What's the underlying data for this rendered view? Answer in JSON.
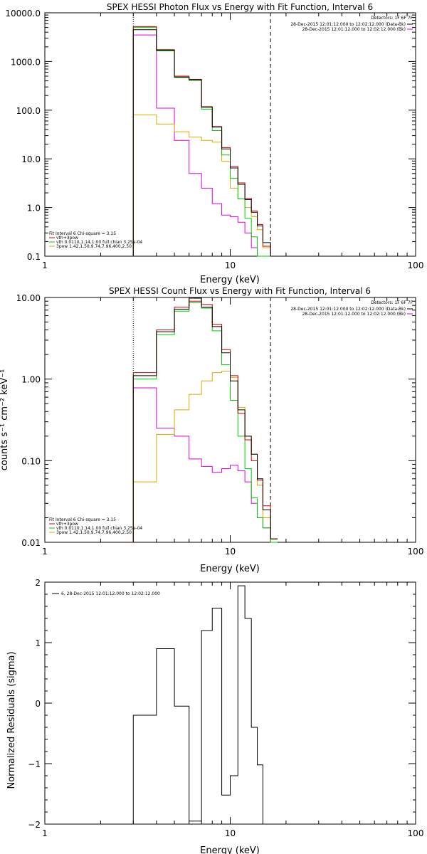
{
  "chart_data": [
    {
      "type": "line",
      "title": "SPEX HESSI Photon Flux vs Energy with Fit Function, Interval 6",
      "xlabel": "Energy (keV)",
      "ylabel": "",
      "xscale": "log",
      "yscale": "log",
      "xlim": [
        1,
        100
      ],
      "ylim": [
        0.1,
        10000
      ],
      "xticks": [
        {
          "v": 1,
          "label": "1"
        },
        {
          "v": 10,
          "label": "10"
        },
        {
          "v": 100,
          "label": "100"
        }
      ],
      "yticks": [
        {
          "v": 0.1,
          "label": "0.1"
        },
        {
          "v": 1,
          "label": "1.0"
        },
        {
          "v": 10,
          "label": "10.0"
        },
        {
          "v": 100,
          "label": "100.0"
        },
        {
          "v": 1000,
          "label": "1000.0"
        },
        {
          "v": 10000,
          "label": "10000.0"
        }
      ],
      "vlines": [
        {
          "x": 3,
          "style": "dotted"
        },
        {
          "x": 16.5,
          "style": "dashed"
        }
      ],
      "legend_top_right": {
        "header": "Detectors: 1F 6F 7F",
        "entries": [
          {
            "label": "28-Dec-2015 12:01:12.000 to 12:02:12.000 (Data-Bk)",
            "color": "#000000"
          },
          {
            "label": "28-Dec-2015 12:01:12.000 to 12:02:12.000 (Bk)",
            "color": "#dd00dd"
          }
        ]
      },
      "legend_bottom_left": {
        "header": "Fit Interval 6   Chi-square = 3.15",
        "entries": [
          {
            "label": "vth+3pow",
            "color": "#cc0000"
          },
          {
            "label": "vth 0.0110,1.14,1.00  full chian 3.25e-04",
            "color": "#00cc00"
          },
          {
            "label": "3pow 1.42,1.50,9.74,7.96,400,2.50",
            "color": "#ddaa00"
          }
        ]
      },
      "edges": [
        3,
        4,
        5,
        6,
        7,
        8,
        9,
        10,
        11,
        12,
        13,
        14,
        15,
        16.5,
        18
      ],
      "series": [
        {
          "name": "Data-Bk",
          "color": "#000000",
          "values": [
            4500,
            1700,
            480,
            420,
            115,
            45,
            16,
            6.5,
            3,
            1.45,
            0.8,
            0.42,
            0.19,
            0.1
          ]
        },
        {
          "name": "vth+3pow",
          "color": "#cc0000",
          "values": [
            5200,
            1750,
            500,
            430,
            118,
            46,
            17,
            7,
            3.2,
            1.55,
            0.85,
            0.45,
            0.16,
            0.1
          ]
        },
        {
          "name": "vth",
          "color": "#00cc00",
          "values": [
            5000,
            1650,
            470,
            410,
            105,
            38,
            12,
            4,
            1.5,
            0.6,
            0.25,
            0.1,
            0.1,
            0.1
          ]
        },
        {
          "name": "3pow",
          "color": "#ddaa00",
          "values": [
            80,
            52,
            36,
            28,
            24,
            22,
            9,
            2.5,
            1.5,
            1.0,
            0.65,
            0.35,
            0.15,
            0.1
          ]
        },
        {
          "name": "Bk",
          "color": "#dd00dd",
          "values": [
            3500,
            110,
            24,
            5,
            2.5,
            1.2,
            0.7,
            0.65,
            0.5,
            0.3,
            0.15,
            0.1,
            0.1,
            0.1
          ]
        }
      ]
    },
    {
      "type": "line",
      "title": "SPEX HESSI Count Flux vs Energy with Fit Function, Interval 6",
      "xlabel": "Energy (keV)",
      "ylabel": "counts s⁻¹ cm⁻² keV⁻¹",
      "xscale": "log",
      "yscale": "log",
      "xlim": [
        1,
        100
      ],
      "ylim": [
        0.01,
        10
      ],
      "xticks": [
        {
          "v": 1,
          "label": "1"
        },
        {
          "v": 10,
          "label": "10"
        },
        {
          "v": 100,
          "label": "100"
        }
      ],
      "yticks": [
        {
          "v": 0.01,
          "label": "0.01"
        },
        {
          "v": 0.1,
          "label": "0.10"
        },
        {
          "v": 1,
          "label": "1.00"
        },
        {
          "v": 10,
          "label": "10.00"
        }
      ],
      "vlines": [
        {
          "x": 3,
          "style": "dotted"
        },
        {
          "x": 16.5,
          "style": "dashed"
        }
      ],
      "legend_top_right": {
        "header": "Detectors: 1F 6F 7F",
        "entries": [
          {
            "label": "28-Dec-2015 12:01:12.000 to 12:02:12.000 (Data-Bk)",
            "color": "#000000"
          },
          {
            "label": "28-Dec-2015 12:01:12.000 to 12:02:12.000 (Bk)",
            "color": "#dd00dd"
          }
        ]
      },
      "legend_bottom_left": {
        "header": "Fit Interval 6   Chi-square = 3.15",
        "entries": [
          {
            "label": "vth+3pow",
            "color": "#cc0000"
          },
          {
            "label": "vth 0.0110,1.14,1.00  full chian 3.25e-04",
            "color": "#00cc00"
          },
          {
            "label": "3pow 1.42,1.50,9.74,7.96,400,2.50",
            "color": "#ddaa00"
          }
        ]
      },
      "edges": [
        3,
        4,
        5,
        6,
        7,
        8,
        9,
        10,
        11,
        12,
        13,
        14,
        15,
        16.5,
        18
      ],
      "series": [
        {
          "name": "Data-Bk",
          "color": "#000000",
          "values": [
            1.1,
            3.8,
            7.2,
            9.8,
            7.6,
            4.4,
            2.1,
            0.95,
            0.42,
            0.2,
            0.12,
            0.06,
            0.025,
            0.011
          ]
        },
        {
          "name": "vth+3pow",
          "color": "#cc0000",
          "values": [
            1.2,
            4.0,
            7.6,
            9.0,
            8.2,
            4.7,
            2.3,
            1.1,
            0.38,
            0.18,
            0.1,
            0.058,
            0.028,
            0.011
          ]
        },
        {
          "name": "vth",
          "color": "#00cc00",
          "values": [
            1.0,
            3.5,
            6.8,
            8.6,
            7.4,
            3.9,
            1.5,
            0.55,
            0.2,
            0.08,
            0.035,
            0.02,
            0.015,
            0.01
          ]
        },
        {
          "name": "3pow",
          "color": "#ddaa00",
          "values": [
            0.055,
            0.21,
            0.42,
            0.65,
            0.95,
            1.2,
            1.25,
            1.05,
            0.45,
            0.2,
            0.12,
            0.05,
            0.02,
            0.011
          ]
        },
        {
          "name": "Bk",
          "color": "#dd00dd",
          "values": [
            0.78,
            0.25,
            0.2,
            0.105,
            0.085,
            0.072,
            0.08,
            0.088,
            0.075,
            0.055,
            0.03,
            0.02,
            0.015,
            0.01
          ]
        }
      ]
    },
    {
      "type": "line",
      "title": "",
      "xlabel": "Energy (keV)",
      "ylabel": "Normalized Residuals (sigma)",
      "xscale": "log",
      "yscale": "linear",
      "xlim": [
        1,
        100
      ],
      "ylim": [
        -2,
        2
      ],
      "xticks": [
        {
          "v": 1,
          "label": "1"
        },
        {
          "v": 10,
          "label": "10"
        },
        {
          "v": 100,
          "label": "100"
        }
      ],
      "yticks": [
        {
          "v": -2,
          "label": "−2"
        },
        {
          "v": -1,
          "label": "−1"
        },
        {
          "v": 0,
          "label": "0"
        },
        {
          "v": 1,
          "label": "1"
        },
        {
          "v": 2,
          "label": "2"
        }
      ],
      "legend_top_left": {
        "entries": [
          {
            "label": "6, 28-Dec-2015 12:01:12.000 to 12:02:12.000",
            "color": "#000000"
          }
        ]
      },
      "edges": [
        3,
        4,
        5,
        6,
        7,
        8,
        9,
        10,
        11,
        12,
        13,
        14,
        15,
        16.5
      ],
      "series": [
        {
          "name": "",
          "color": "#000000",
          "values": [
            -0.2,
            0.9,
            -0.05,
            -1.95,
            1.2,
            1.57,
            -1.52,
            -1.2,
            1.94,
            1.4,
            -0.4,
            -1.02,
            -2.0
          ]
        }
      ]
    }
  ]
}
